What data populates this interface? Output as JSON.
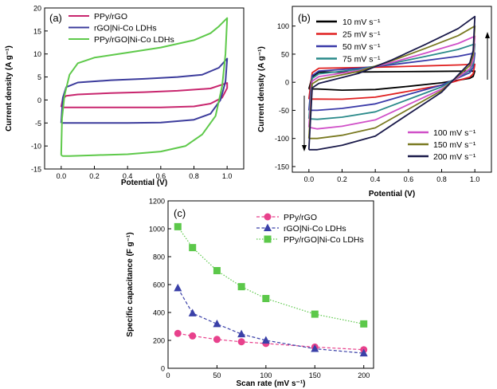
{
  "chart_data": [
    {
      "id": "a",
      "type": "line",
      "panel_label": "(a)",
      "xlabel": "Potential (V)",
      "ylabel": "Current density (A g⁻¹)",
      "xlim": [
        -0.1,
        1.1
      ],
      "ylim": [
        -15,
        20
      ],
      "x_ticks": [
        0.0,
        0.2,
        0.4,
        0.6,
        0.8,
        1.0
      ],
      "x_tick_labels": [
        "0.0",
        "0.2",
        "0.4",
        "0.6",
        "0.8",
        "1.0"
      ],
      "y_ticks": [
        -15,
        -10,
        -5,
        0,
        5,
        10,
        15,
        20
      ],
      "y_tick_labels": [
        "-15",
        "-10",
        "-5",
        "0",
        "5",
        "10",
        "15",
        "20"
      ],
      "legend_position": "top-left",
      "series": [
        {
          "name": "PPy/rGO",
          "color": "#c8266e",
          "x": [
            0.0,
            0.01,
            0.03,
            0.1,
            0.3,
            0.5,
            0.7,
            0.9,
            1.0,
            1.0,
            0.97,
            0.9,
            0.8,
            0.6,
            0.4,
            0.2,
            0.06,
            0.02,
            0.0
          ],
          "y": [
            -1.5,
            0.3,
            0.9,
            1.2,
            1.5,
            1.7,
            2.0,
            2.5,
            3.7,
            2.6,
            0.5,
            -0.8,
            -1.4,
            -1.6,
            -1.6,
            -1.6,
            -1.6,
            -1.6,
            -1.5
          ]
        },
        {
          "name": "rGO|Ni-Co LDHs",
          "color": "#3c3c9c",
          "x": [
            0.0,
            0.01,
            0.03,
            0.1,
            0.3,
            0.5,
            0.7,
            0.85,
            0.95,
            1.0,
            0.99,
            0.96,
            0.9,
            0.8,
            0.6,
            0.4,
            0.2,
            0.05,
            0.01,
            0.0
          ],
          "y": [
            -5.0,
            0.5,
            2.8,
            3.8,
            4.3,
            4.6,
            5.0,
            5.5,
            7.0,
            9.0,
            4.0,
            0.0,
            -3.0,
            -4.3,
            -4.9,
            -5.0,
            -5.0,
            -5.0,
            -5.0,
            -5.0
          ]
        },
        {
          "name": "PPy/rGO|Ni-Co LDHs",
          "color": "#5ec94a",
          "x": [
            0.0,
            0.005,
            0.02,
            0.05,
            0.1,
            0.2,
            0.4,
            0.6,
            0.8,
            0.9,
            0.95,
            1.0,
            0.99,
            0.97,
            0.93,
            0.85,
            0.75,
            0.6,
            0.4,
            0.2,
            0.05,
            0.01,
            0.0
          ],
          "y": [
            -12.0,
            -4.0,
            1.0,
            5.5,
            8.0,
            9.2,
            10.3,
            11.4,
            13.0,
            14.5,
            16.0,
            17.8,
            10.0,
            3.0,
            -3.5,
            -7.5,
            -10.0,
            -11.2,
            -11.8,
            -12.0,
            -12.2,
            -12.2,
            -12.0
          ]
        }
      ]
    },
    {
      "id": "b",
      "type": "line",
      "panel_label": "(b)",
      "xlabel": "Potential (V)",
      "ylabel": "Current density (A g⁻¹)",
      "xlim": [
        -0.1,
        1.1
      ],
      "ylim": [
        -160,
        135
      ],
      "x_ticks": [
        0.0,
        0.2,
        0.4,
        0.6,
        0.8,
        1.0
      ],
      "x_tick_labels": [
        "0.0",
        "0.2",
        "0.4",
        "0.6",
        "0.8",
        "1.0"
      ],
      "y_ticks": [
        -150,
        -100,
        -50,
        0,
        50,
        100
      ],
      "y_tick_labels": [
        "-150",
        "-100",
        "-50",
        "0",
        "50",
        "100"
      ],
      "legend_top": [
        {
          "label": "10 mV s⁻¹",
          "color": "#000000"
        },
        {
          "label": "25 mV s⁻¹",
          "color": "#e02020"
        },
        {
          "label": "50 mV s⁻¹",
          "color": "#3a3aa8"
        },
        {
          "label": "75 mV s⁻¹",
          "color": "#2a8a8a"
        }
      ],
      "legend_bottom": [
        {
          "label": "100 mV s⁻¹",
          "color": "#d050c8"
        },
        {
          "label": "150 mV s⁻¹",
          "color": "#7a7a22"
        },
        {
          "label": "200 mV s⁻¹",
          "color": "#1a1a4a"
        }
      ],
      "series": [
        {
          "name": "10 mV s⁻¹",
          "color": "#000000",
          "start": -12,
          "top": 18,
          "bottom": -14,
          "peak": 20,
          "trough": -14
        },
        {
          "name": "25 mV s⁻¹",
          "color": "#e02020",
          "start": -30,
          "top": 25,
          "bottom": -28,
          "peak": 32,
          "trough": -32
        },
        {
          "name": "50 mV s⁻¹",
          "color": "#3a3aa8",
          "start": -50,
          "top": 20,
          "bottom": -40,
          "peak": 52,
          "trough": -52
        },
        {
          "name": "75 mV s⁻¹",
          "color": "#2a8a8a",
          "start": -65,
          "top": 15,
          "bottom": -55,
          "peak": 68,
          "trough": -68
        },
        {
          "name": "100 mV s⁻¹",
          "color": "#d050c8",
          "start": -80,
          "top": 10,
          "bottom": -70,
          "peak": 82,
          "trough": -85
        },
        {
          "name": "150 mV s⁻¹",
          "color": "#7a7a22",
          "start": -100,
          "top": 5,
          "bottom": -85,
          "peak": 100,
          "trough": -102
        },
        {
          "name": "200 mV s⁻¹",
          "color": "#1a1a4a",
          "start": -120,
          "top": -2,
          "bottom": -100,
          "peak": 117,
          "trough": -122
        }
      ]
    },
    {
      "id": "c",
      "type": "scatter",
      "panel_label": "(c)",
      "xlabel": "Scan rate (mV s⁻¹)",
      "ylabel": "Specific capacitance (F g⁻¹)",
      "xlim": [
        0,
        210
      ],
      "ylim": [
        0,
        1200
      ],
      "x_ticks": [
        0,
        50,
        100,
        150,
        200
      ],
      "x_tick_labels": [
        "0",
        "50",
        "100",
        "150",
        "200"
      ],
      "y_ticks": [
        0,
        200,
        400,
        600,
        800,
        1000,
        1200
      ],
      "y_tick_labels": [
        "0",
        "200",
        "400",
        "600",
        "800",
        "1000",
        "1200"
      ],
      "legend_position": "top-right",
      "x": [
        10,
        25,
        50,
        75,
        100,
        150,
        200
      ],
      "series": [
        {
          "name": "PPy/rGO",
          "color": "#e8418c",
          "marker": "circle",
          "values": [
            250,
            232,
            207,
            190,
            178,
            152,
            133
          ]
        },
        {
          "name": "rGO|Ni-Co LDHs",
          "color": "#3a40a8",
          "marker": "triangle",
          "values": [
            575,
            395,
            318,
            245,
            200,
            140,
            108
          ]
        },
        {
          "name": "PPy/rGO|Ni-Co LDHs",
          "color": "#5cc84a",
          "marker": "square",
          "values": [
            1015,
            865,
            700,
            585,
            500,
            388,
            318
          ]
        }
      ]
    }
  ]
}
